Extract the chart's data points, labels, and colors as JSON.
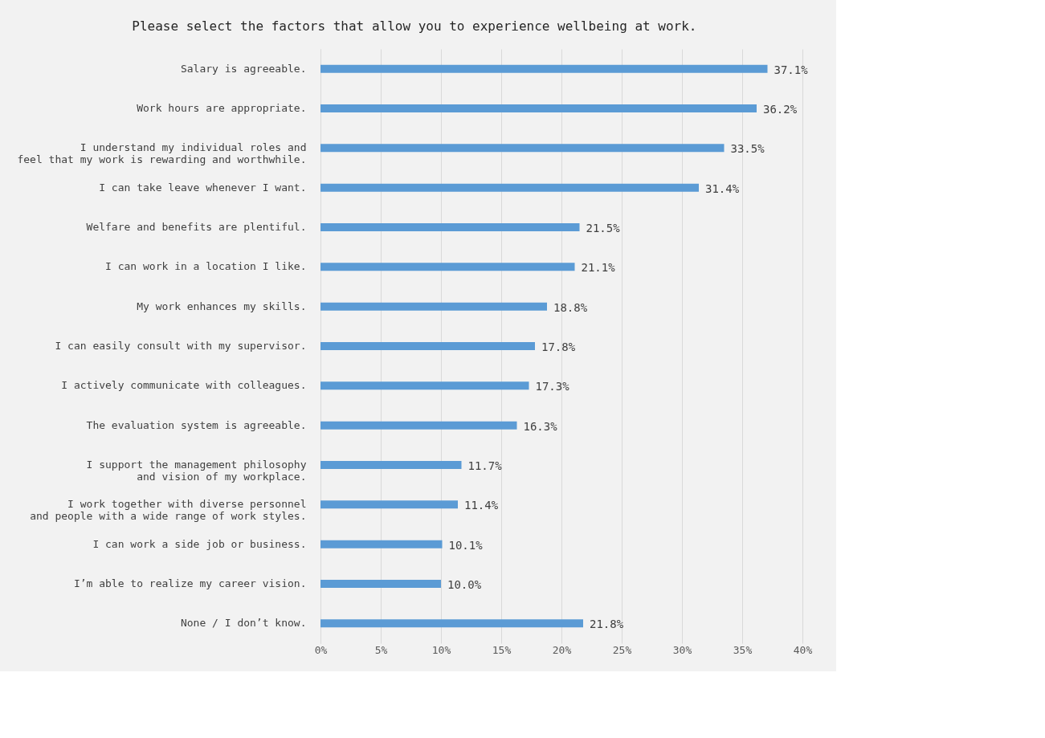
{
  "chart_data": {
    "type": "bar",
    "orientation": "horizontal",
    "title": "Please select the factors that allow you to experience wellbeing at work.",
    "categories": [
      "Salary is agreeable.",
      "Work hours are appropriate.",
      "I understand my individual roles and\nfeel that my work is rewarding and worthwhile.",
      "I can take leave whenever I want.",
      "Welfare and benefits are plentiful.",
      "I can work in a location I like.",
      "My work enhances my skills.",
      "I can easily consult with my supervisor.",
      "I actively communicate with colleagues.",
      "The evaluation system is agreeable.",
      "I support the management philosophy\nand vision of my workplace.",
      "I work together with diverse personnel\nand people with a wide range of work styles.",
      "I can work a side job or business.",
      "I’m able to realize my career vision.",
      "None / I don’t know."
    ],
    "values": [
      37.1,
      36.2,
      33.5,
      31.4,
      21.5,
      21.1,
      18.8,
      17.8,
      17.3,
      16.3,
      11.7,
      11.4,
      10.1,
      10.0,
      21.8
    ],
    "value_labels": [
      "37.1%",
      "36.2%",
      "33.5%",
      "31.4%",
      "21.5%",
      "21.1%",
      "18.8%",
      "17.8%",
      "17.3%",
      "16.3%",
      "11.7%",
      "11.4%",
      "10.1%",
      "10.0%",
      "21.8%"
    ],
    "color": "#5b9bd5",
    "xlim": [
      0,
      40
    ],
    "xticks": [
      {
        "value": 0,
        "label": "0%"
      },
      {
        "value": 5,
        "label": "5%"
      },
      {
        "value": 10,
        "label": "10%"
      },
      {
        "value": 15,
        "label": "15%"
      },
      {
        "value": 20,
        "label": "20%"
      },
      {
        "value": 25,
        "label": "25%"
      },
      {
        "value": 30,
        "label": "30%"
      },
      {
        "value": 35,
        "label": "35%"
      },
      {
        "value": 40,
        "label": "40%"
      }
    ],
    "grid": "x"
  }
}
